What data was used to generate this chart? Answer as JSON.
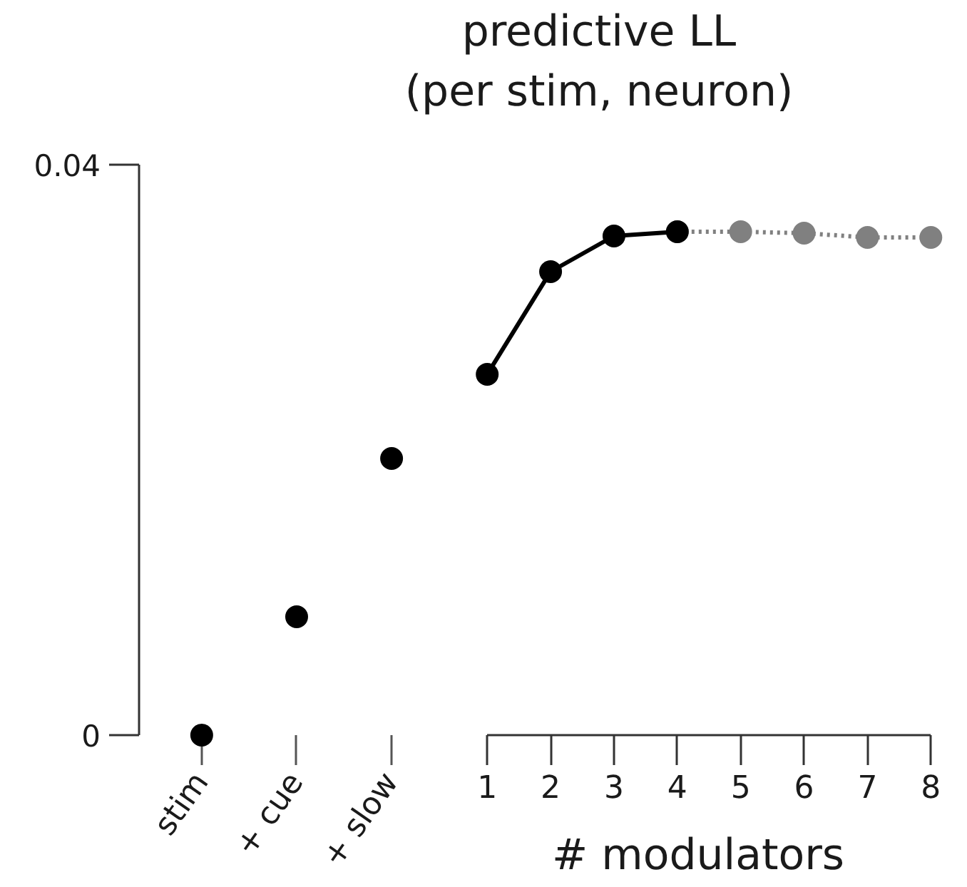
{
  "chart_data": [
    {
      "type": "scatter",
      "categories": [
        "stim",
        "+ cue",
        "+ slow"
      ],
      "values": [
        0,
        0.0083,
        0.0194
      ],
      "color": "#000000",
      "marker": "circle",
      "ylim": [
        0,
        0.04
      ],
      "yticks": [
        0,
        0.04
      ]
    },
    {
      "type": "line",
      "title": "predictive LL\n(per stim, neuron)",
      "xlabel": "# modulators",
      "xlim": [
        1,
        8
      ],
      "xticks": [
        1,
        2,
        3,
        4,
        5,
        6,
        7,
        8
      ],
      "ylim": [
        0,
        0.04
      ],
      "tick_labels": "x",
      "marker": "circle",
      "series": [
        {
          "x": [
            4,
            5,
            6,
            7,
            8
          ],
          "color": "#808080",
          "values": [
            0.0353,
            0.0353,
            0.0352,
            0.0349,
            0.0349
          ],
          "line_style": "dotted"
        },
        {
          "x": [
            1,
            2,
            3,
            4
          ],
          "color": "#000000",
          "values": [
            0.0253,
            0.0325,
            0.035,
            0.0353
          ],
          "line_style": "solid"
        }
      ]
    }
  ]
}
